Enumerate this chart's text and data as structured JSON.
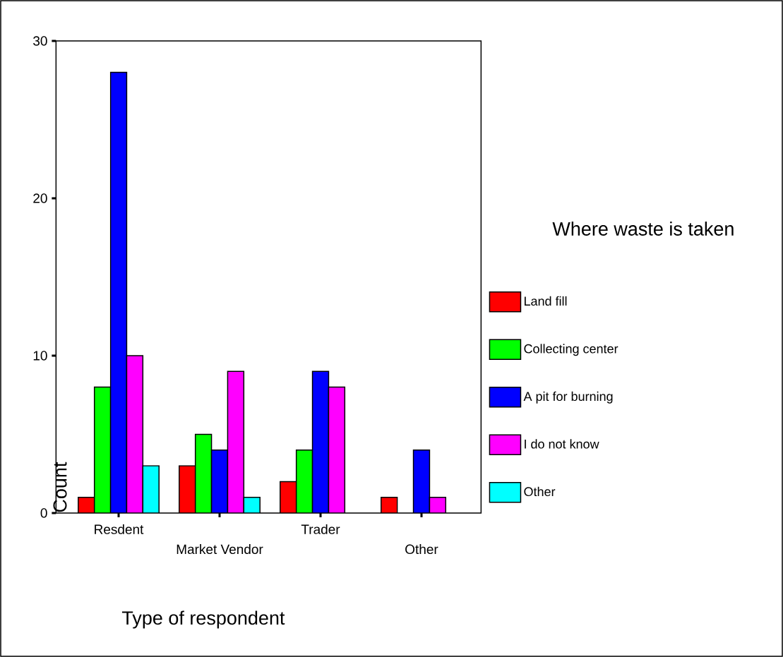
{
  "chart_data": {
    "type": "bar",
    "xlabel": "Type of respondent",
    "ylabel": "Count",
    "legend_title": "Where waste is taken",
    "categories": [
      "Resdent",
      "Market Vendor",
      "Trader",
      "Other"
    ],
    "series": [
      {
        "name": "Land fill",
        "color": "#ff0000",
        "values": [
          1,
          3,
          2,
          1
        ]
      },
      {
        "name": "Collecting center",
        "color": "#00ff00",
        "values": [
          8,
          5,
          4,
          null
        ]
      },
      {
        "name": "A pit for burning",
        "color": "#0000ff",
        "values": [
          28,
          4,
          9,
          4
        ]
      },
      {
        "name": "I do not know",
        "color": "#ff00ff",
        "values": [
          10,
          9,
          8,
          1
        ]
      },
      {
        "name": "Other",
        "color": "#00ffff",
        "values": [
          3,
          1,
          null,
          null
        ]
      }
    ],
    "ylim": [
      0,
      30
    ],
    "yticks": [
      0,
      10,
      20,
      30
    ],
    "grid": false,
    "legend": "right"
  }
}
